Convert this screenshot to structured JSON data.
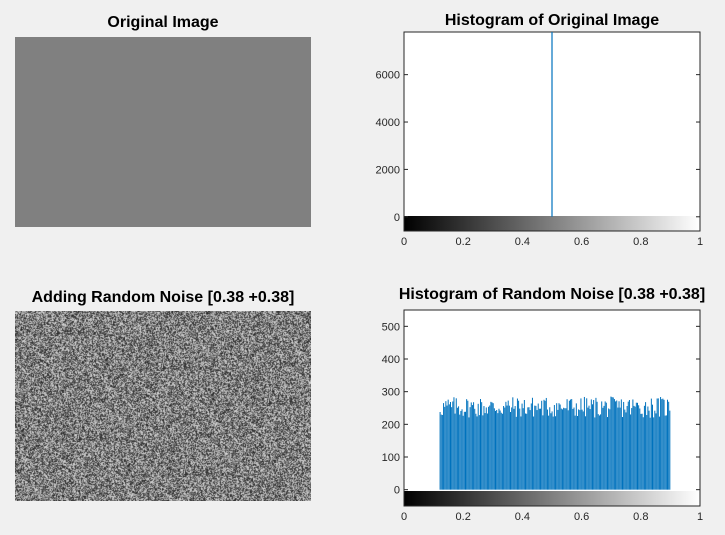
{
  "panels": {
    "original_title": "Original Image",
    "original_hist_title": "Histogram of Original Image",
    "noise_title": "Adding Random Noise [0.38 +0.38]",
    "noise_hist_title": "Histogram of Random Noise [0.38 +0.38]"
  },
  "colors": {
    "figure_bg": "#f0f0f0",
    "gray_image": "#808080",
    "bar_color": "#0072bd"
  },
  "chart_data": [
    {
      "type": "image",
      "title": "Original Image",
      "uniform_gray_level": 0.5
    },
    {
      "type": "bar",
      "title": "Histogram of Original Image",
      "xlim": [
        0,
        1
      ],
      "ylim": [
        -600,
        7800
      ],
      "xticks": [
        "0",
        "0.2",
        "0.4",
        "0.6",
        "0.8",
        "1"
      ],
      "yticks": [
        "0",
        "2000",
        "4000",
        "6000"
      ],
      "ytick_values": [
        0,
        2000,
        4000,
        6000
      ],
      "x": [
        0.5
      ],
      "values": [
        7800
      ],
      "colorbar": "grayscale 0 to 1 below axis"
    },
    {
      "type": "image",
      "title": "Adding Random Noise [0.38 +0.38]",
      "noise_range": [
        0.12,
        0.88
      ]
    },
    {
      "type": "bar",
      "title": "Histogram of Random Noise [0.38 +0.38]",
      "xlim": [
        0,
        1
      ],
      "ylim": [
        -50,
        550
      ],
      "xticks": [
        "0",
        "0.2",
        "0.4",
        "0.6",
        "0.8",
        "1"
      ],
      "yticks": [
        "0",
        "100",
        "200",
        "300",
        "400",
        "500"
      ],
      "ytick_values": [
        0,
        100,
        200,
        300,
        400,
        500
      ],
      "bin_range": [
        0.12,
        0.9
      ],
      "bin_count": 200,
      "mean_count": 250,
      "min_count": 220,
      "max_count": 285,
      "colorbar": "grayscale 0 to 1 below axis"
    }
  ]
}
